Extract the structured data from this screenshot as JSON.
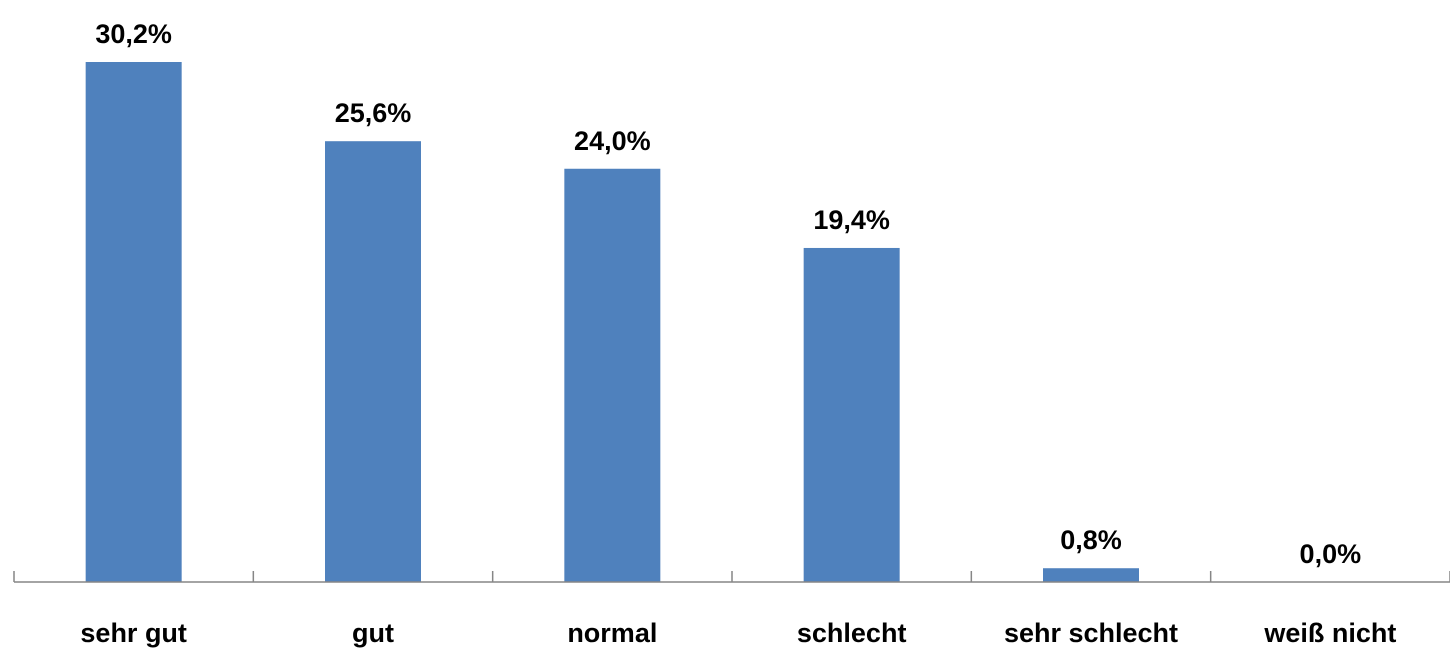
{
  "chart_data": {
    "type": "bar",
    "categories": [
      "sehr gut",
      "gut",
      "normal",
      "schlecht",
      "sehr schlecht",
      "weiß nicht"
    ],
    "values": [
      30.2,
      25.6,
      24.0,
      19.4,
      0.8,
      0.0
    ],
    "value_labels": [
      "30,2%",
      "25,6%",
      "24,0%",
      "19,4%",
      "0,8%",
      "0,0%"
    ],
    "title": "",
    "xlabel": "",
    "ylabel": "",
    "ylim": [
      0,
      30.2
    ],
    "grid": false,
    "legend": "none",
    "colors": {
      "bar": "#4F81BD",
      "axis": "#868686",
      "text": "#000000"
    }
  }
}
